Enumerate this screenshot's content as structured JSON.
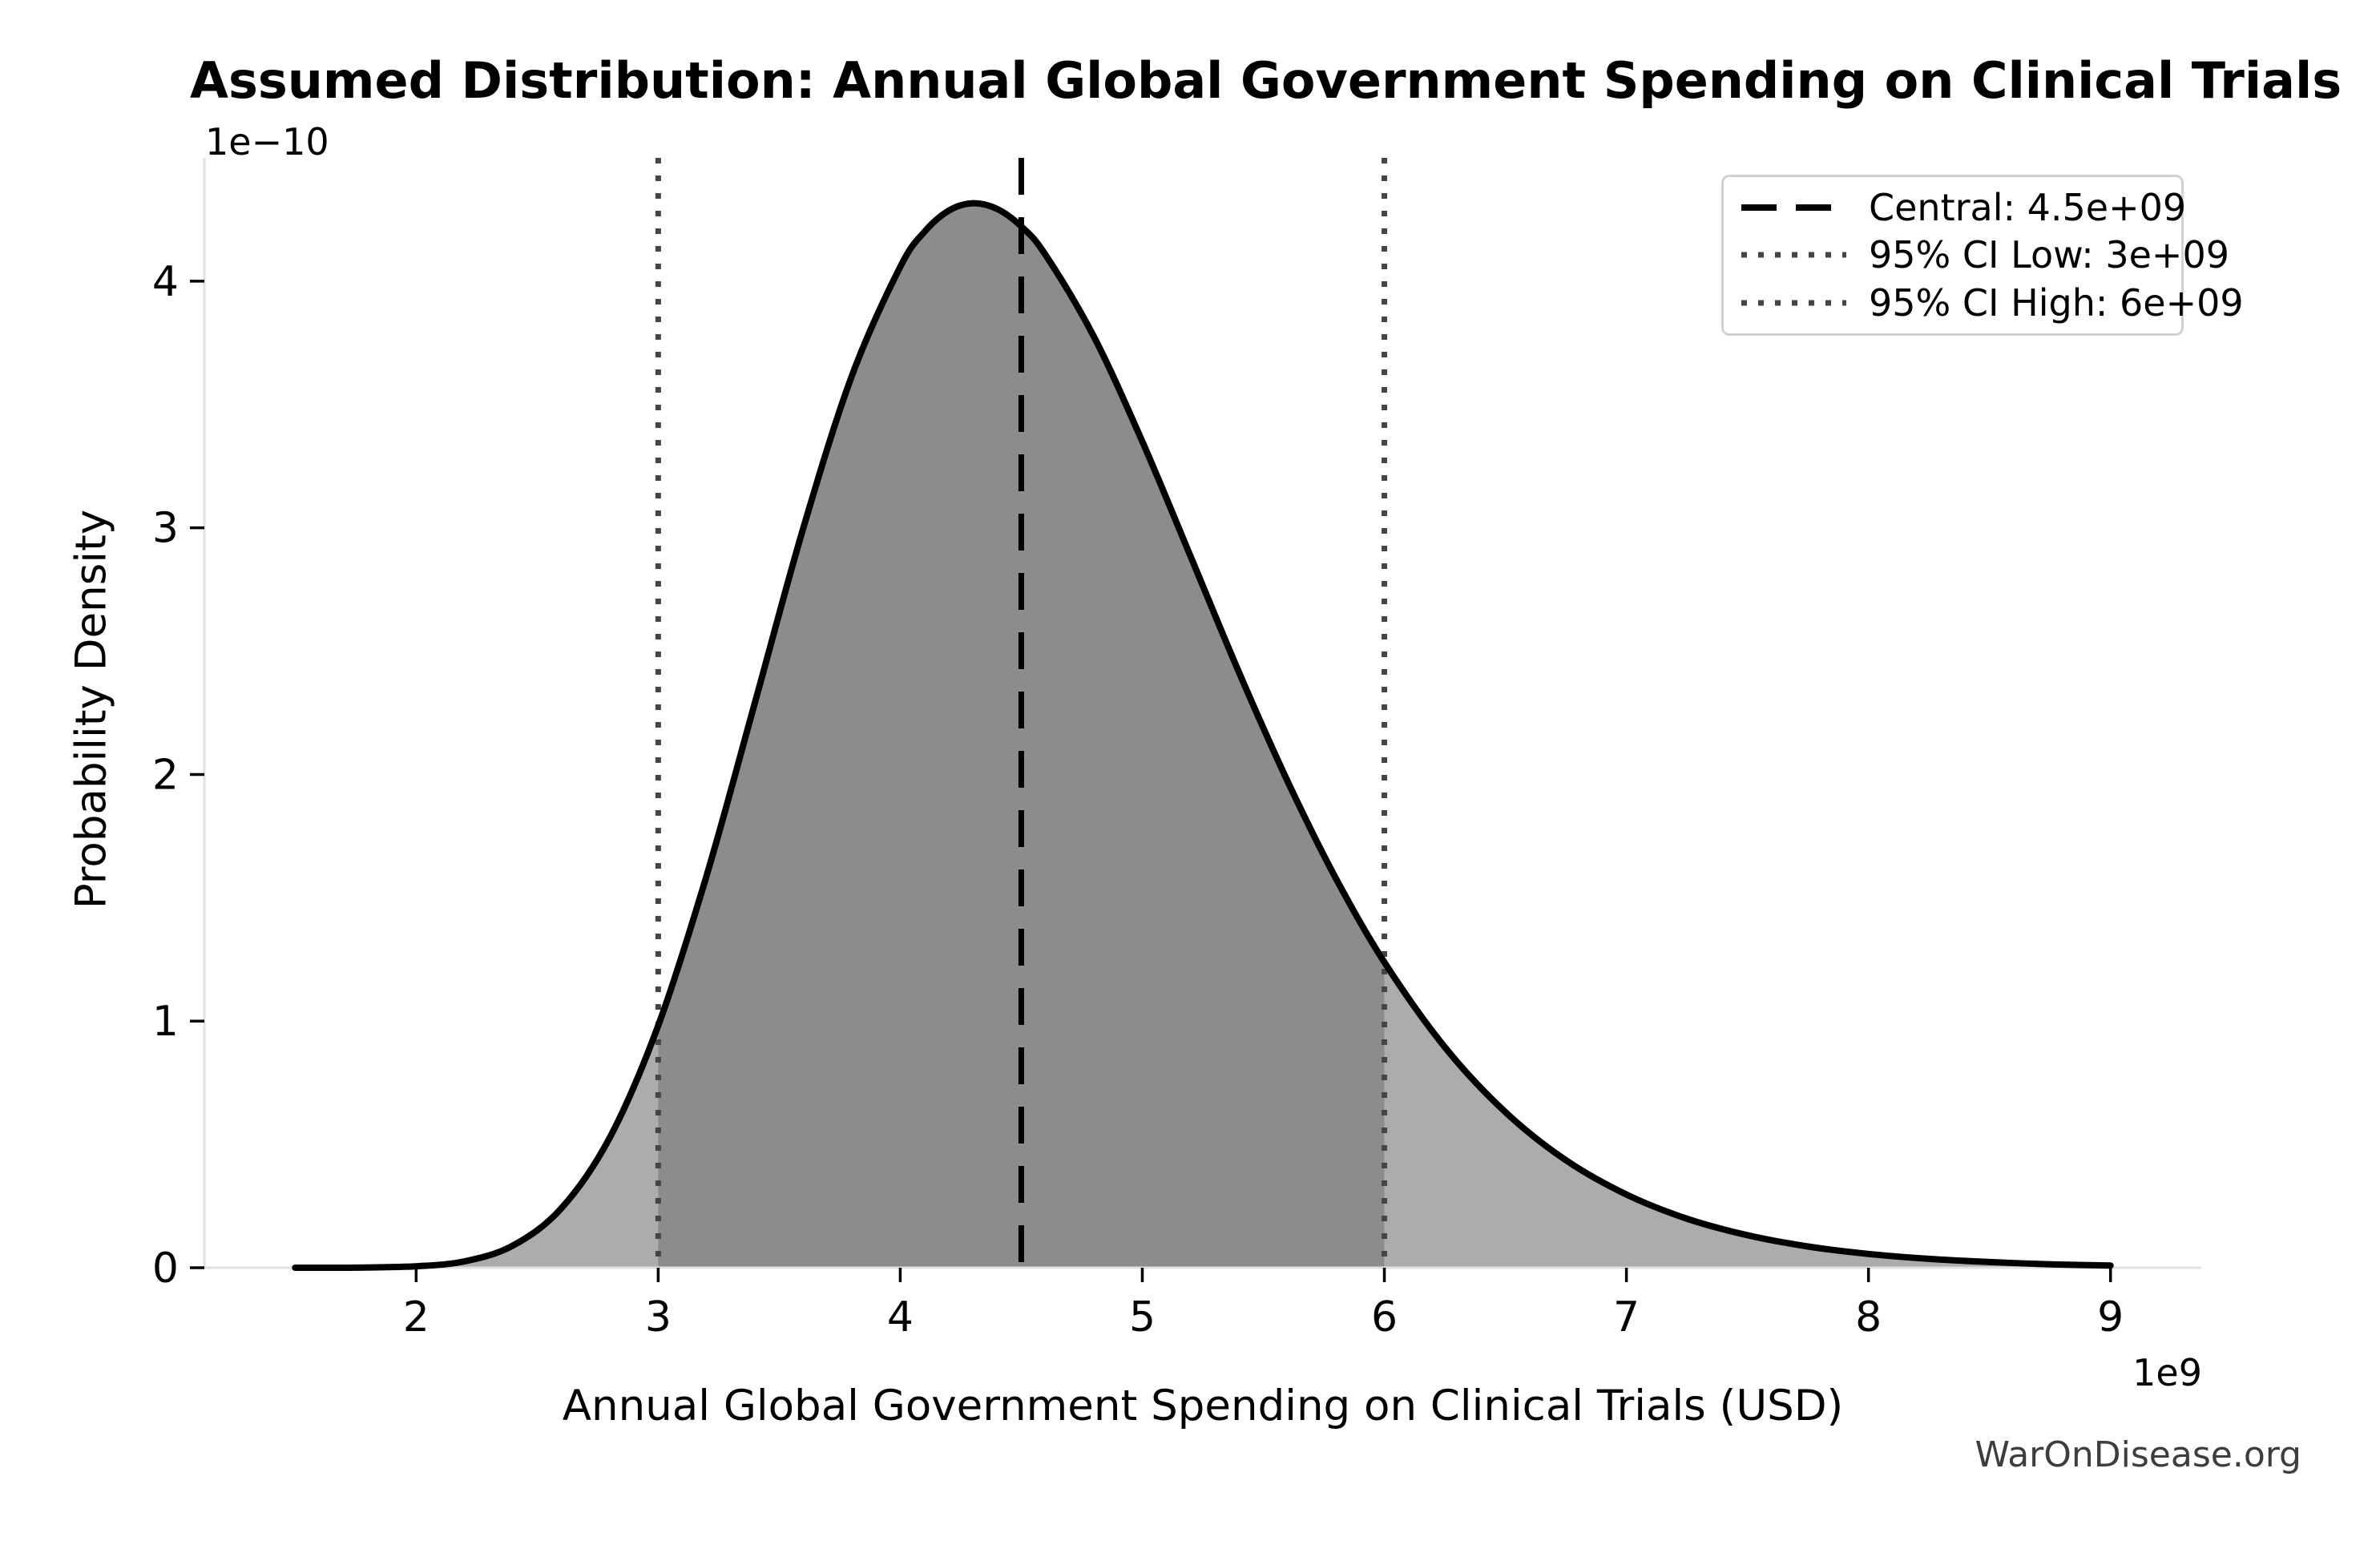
{
  "watermark": "WarOnDisease.org",
  "chart_data": {
    "type": "area",
    "title": "Assumed Distribution: Annual Global Government Spending on Clinical Trials",
    "xlabel": "Annual Global Government Spending on Clinical Trials (USD)",
    "ylabel": "Probability Density",
    "x_scale_offset": "1e9",
    "y_scale_offset": "1e−10",
    "xlim": [
      1.125,
      9.375
    ],
    "ylim": [
      0,
      4.5
    ],
    "x_ticks": [
      2,
      3,
      4,
      5,
      6,
      7,
      8,
      9
    ],
    "y_ticks": [
      0,
      1,
      2,
      3,
      4
    ],
    "grid": false,
    "legend_position": "upper right",
    "central": {
      "value_1e9": 4.5,
      "label": "Central: 4.5e+09"
    },
    "ci_low": {
      "value_1e9": 3,
      "label": "95% CI Low: 3e+09"
    },
    "ci_high": {
      "value_1e9": 6,
      "label": "95% CI High: 6e+09"
    },
    "ci_region_1e9": [
      3,
      6
    ],
    "curve": {
      "x_1e9": [
        1.5,
        1.75,
        2.0,
        2.2,
        2.4,
        2.6,
        2.8,
        3.0,
        3.2,
        3.4,
        3.6,
        3.8,
        4.0,
        4.1,
        4.2,
        4.3,
        4.4,
        4.5,
        4.6,
        4.8,
        5.0,
        5.2,
        5.4,
        5.6,
        5.8,
        6.0,
        6.25,
        6.5,
        6.75,
        7.0,
        7.25,
        7.5,
        7.75,
        8.0,
        8.25,
        8.5,
        8.75,
        9.0
      ],
      "y_1e10": [
        0.0,
        0.0004,
        0.006,
        0.026,
        0.09,
        0.241,
        0.528,
        0.982,
        1.59,
        2.293,
        3.001,
        3.616,
        4.058,
        4.2,
        4.286,
        4.316,
        4.293,
        4.222,
        4.107,
        3.775,
        3.35,
        2.883,
        2.413,
        1.973,
        1.578,
        1.239,
        0.894,
        0.631,
        0.436,
        0.297,
        0.199,
        0.132,
        0.086,
        0.056,
        0.036,
        0.023,
        0.014,
        0.009
      ]
    },
    "colors": {
      "curve": "#000000",
      "fill_light": "#ACACAC",
      "fill_dark": "#8C8C8C",
      "central_line": "#000000",
      "ci_line": "#454545",
      "spine": "#E1E1E1",
      "tick": "#000000",
      "text": "#000000",
      "watermark": "#3D3D3D",
      "legend_border": "#D2D2D2"
    }
  }
}
